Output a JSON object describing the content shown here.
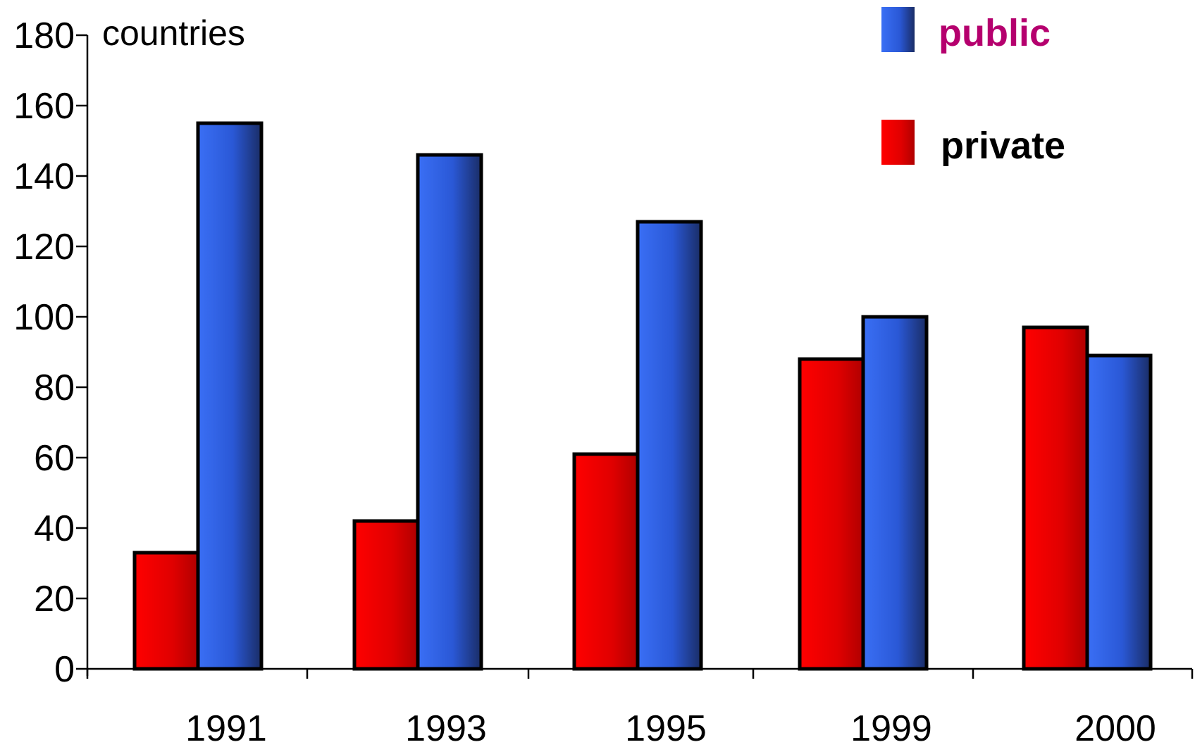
{
  "chart_data": {
    "type": "bar",
    "title": "",
    "ylabel": "countries",
    "xlabel": "",
    "categories": [
      "1991",
      "1993",
      "1995",
      "1999",
      "2000"
    ],
    "series": [
      {
        "name": "private",
        "values": [
          33,
          42,
          61,
          88,
          97
        ],
        "color": "#ee0000"
      },
      {
        "name": "public",
        "values": [
          155,
          146,
          127,
          100,
          89
        ],
        "color": "#2f66f2"
      }
    ],
    "ylim": [
      0,
      180
    ],
    "yticks": [
      0,
      20,
      40,
      60,
      80,
      100,
      120,
      140,
      160,
      180
    ],
    "grid": false,
    "legend": {
      "position": "top-right",
      "items": [
        {
          "label": "public",
          "label_color": "#b5006e"
        },
        {
          "label": "private",
          "label_color": "#000000"
        }
      ]
    }
  }
}
